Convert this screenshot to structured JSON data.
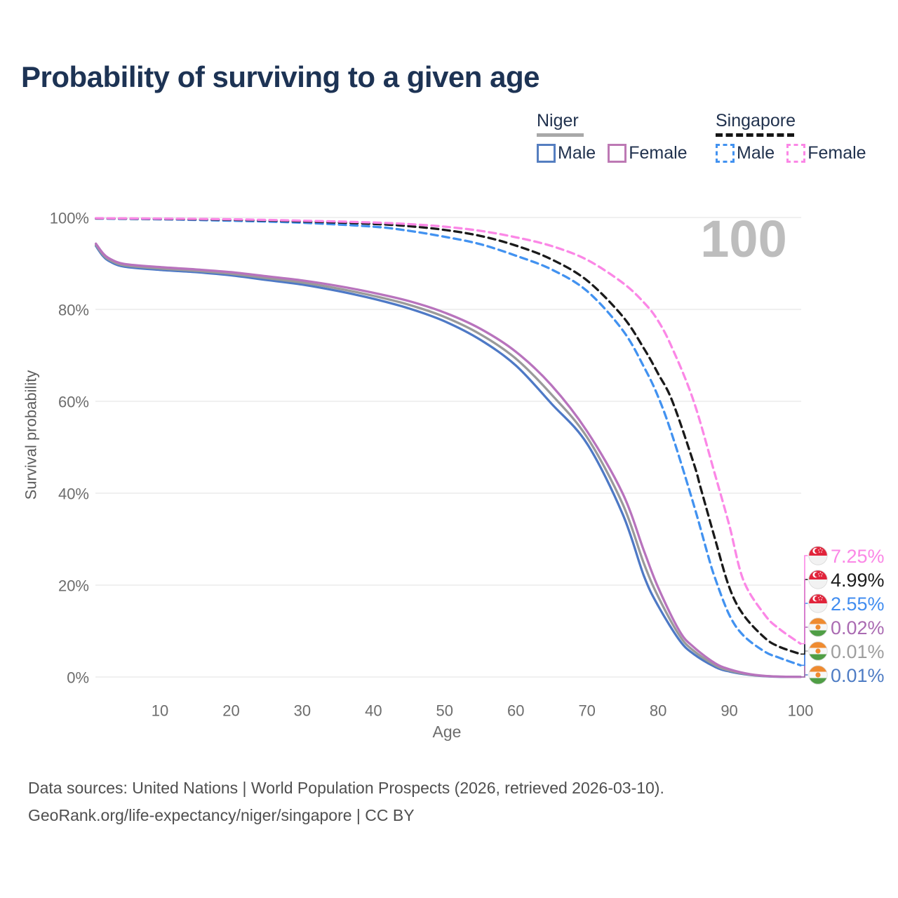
{
  "title": "Probability of surviving to a given age",
  "watermark": "100",
  "legend": {
    "groups": [
      {
        "id": "niger",
        "label": "Niger",
        "line_style": "solid",
        "line_color": "#a8a8a8",
        "items": [
          {
            "label": "Male",
            "color": "#557ec0",
            "dashed": false
          },
          {
            "label": "Female",
            "color": "#bd79b4",
            "dashed": false
          }
        ]
      },
      {
        "id": "singapore",
        "label": "Singapore",
        "line_style": "dashed",
        "line_color": "#151515",
        "items": [
          {
            "label": "Male",
            "color": "#4292f0",
            "dashed": true
          },
          {
            "label": "Female",
            "color": "#fb87e6",
            "dashed": true
          }
        ]
      }
    ]
  },
  "chart_data": {
    "type": "line",
    "title": "Probability of surviving to a given age",
    "xlabel": "Age",
    "ylabel": "Survival probability",
    "x_ticks": [
      10,
      20,
      30,
      40,
      50,
      60,
      70,
      80,
      90,
      100
    ],
    "y_ticks": [
      0,
      20,
      40,
      60,
      80,
      100
    ],
    "y_tick_suffix": "%",
    "x_range": [
      0,
      100
    ],
    "y_range": [
      0,
      100
    ],
    "grid": "horizontal",
    "legend_position": "top-right",
    "series": [
      {
        "id": "niger-male",
        "country": "Niger",
        "sex": "Male",
        "color": "#4e79c6",
        "dashed": false,
        "flag": "niger",
        "end_label": "0.01%",
        "label_color": "#4e7cc4",
        "row": 5,
        "points": [
          [
            1,
            93.8
          ],
          [
            2,
            91.6
          ],
          [
            3,
            90.4
          ],
          [
            5,
            89.3
          ],
          [
            10,
            88.6
          ],
          [
            15,
            88.1
          ],
          [
            20,
            87.4
          ],
          [
            25,
            86.4
          ],
          [
            30,
            85.4
          ],
          [
            35,
            84.0
          ],
          [
            40,
            82.3
          ],
          [
            45,
            80.2
          ],
          [
            50,
            77.4
          ],
          [
            55,
            73.4
          ],
          [
            60,
            67.8
          ],
          [
            65,
            59.5
          ],
          [
            70,
            50.8
          ],
          [
            75,
            35.5
          ],
          [
            78,
            22.0
          ],
          [
            80,
            15.5
          ],
          [
            83,
            8.0
          ],
          [
            85,
            5.0
          ],
          [
            88,
            2.2
          ],
          [
            90,
            1.2
          ],
          [
            93,
            0.45
          ],
          [
            96,
            0.1
          ],
          [
            100,
            0.01
          ]
        ]
      },
      {
        "id": "niger-both",
        "country": "Niger",
        "sex": "Both sexes",
        "color": "#9a9a9a",
        "dashed": false,
        "flag": "niger",
        "end_label": "0.01%",
        "label_color": "#9e9e9e",
        "row": 4,
        "points": [
          [
            1,
            94.05
          ],
          [
            2,
            91.9
          ],
          [
            3,
            90.7
          ],
          [
            5,
            89.6
          ],
          [
            10,
            88.9
          ],
          [
            15,
            88.4
          ],
          [
            20,
            87.75
          ],
          [
            25,
            86.8
          ],
          [
            30,
            85.85
          ],
          [
            35,
            84.55
          ],
          [
            40,
            82.95
          ],
          [
            45,
            81.0
          ],
          [
            50,
            78.35
          ],
          [
            55,
            74.6
          ],
          [
            60,
            69.3
          ],
          [
            65,
            61.5
          ],
          [
            70,
            52.2
          ],
          [
            75,
            37.7
          ],
          [
            78,
            24.7
          ],
          [
            80,
            17.5
          ],
          [
            83,
            9.0
          ],
          [
            85,
            5.7
          ],
          [
            88,
            2.6
          ],
          [
            90,
            1.4
          ],
          [
            93,
            0.5
          ],
          [
            96,
            0.13
          ],
          [
            100,
            0.01
          ]
        ]
      },
      {
        "id": "niger-female",
        "country": "Niger",
        "sex": "Female",
        "color": "#b873bd",
        "dashed": false,
        "flag": "niger",
        "end_label": "0.02%",
        "label_color": "#aa6bb2",
        "row": 3,
        "points": [
          [
            1,
            94.3
          ],
          [
            2,
            92.2
          ],
          [
            3,
            91.0
          ],
          [
            5,
            89.9
          ],
          [
            10,
            89.2
          ],
          [
            15,
            88.7
          ],
          [
            20,
            88.1
          ],
          [
            25,
            87.2
          ],
          [
            30,
            86.3
          ],
          [
            35,
            85.1
          ],
          [
            40,
            83.6
          ],
          [
            45,
            81.8
          ],
          [
            50,
            79.3
          ],
          [
            55,
            75.8
          ],
          [
            60,
            70.8
          ],
          [
            65,
            63.5
          ],
          [
            70,
            53.5
          ],
          [
            75,
            40.0
          ],
          [
            78,
            27.5
          ],
          [
            80,
            19.5
          ],
          [
            83,
            10.0
          ],
          [
            85,
            6.5
          ],
          [
            88,
            3.0
          ],
          [
            90,
            1.7
          ],
          [
            93,
            0.6
          ],
          [
            96,
            0.15
          ],
          [
            100,
            0.02
          ]
        ]
      },
      {
        "id": "singapore-male",
        "country": "Singapore",
        "sex": "Male",
        "color": "#4292f0",
        "dashed": true,
        "flag": "singapore",
        "end_label": "2.55%",
        "label_color": "#418df0",
        "row": 2,
        "points": [
          [
            1,
            99.75
          ],
          [
            10,
            99.6
          ],
          [
            20,
            99.3
          ],
          [
            30,
            98.85
          ],
          [
            40,
            98.0
          ],
          [
            45,
            97.1
          ],
          [
            50,
            95.8
          ],
          [
            55,
            94.2
          ],
          [
            60,
            91.7
          ],
          [
            65,
            88.7
          ],
          [
            70,
            84.0
          ],
          [
            75,
            75.5
          ],
          [
            78,
            67.5
          ],
          [
            80,
            61.0
          ],
          [
            82,
            52.5
          ],
          [
            85,
            37.5
          ],
          [
            87,
            26.5
          ],
          [
            88,
            21.5
          ],
          [
            90,
            13.5
          ],
          [
            92,
            9.0
          ],
          [
            95,
            5.5
          ],
          [
            97,
            4.2
          ],
          [
            100,
            2.55
          ]
        ]
      },
      {
        "id": "singapore-both",
        "country": "Singapore",
        "sex": "Both sexes",
        "color": "#1a1a1a",
        "dashed": true,
        "flag": "singapore",
        "end_label": "4.99%",
        "label_color": "#1c1c1c",
        "row": 1,
        "points": [
          [
            1,
            99.8
          ],
          [
            10,
            99.7
          ],
          [
            20,
            99.5
          ],
          [
            30,
            99.15
          ],
          [
            40,
            98.6
          ],
          [
            45,
            98.1
          ],
          [
            50,
            97.3
          ],
          [
            55,
            96.0
          ],
          [
            60,
            93.9
          ],
          [
            65,
            90.9
          ],
          [
            70,
            86.3
          ],
          [
            75,
            78.5
          ],
          [
            78,
            71.5
          ],
          [
            80,
            66.0
          ],
          [
            82,
            60.0
          ],
          [
            85,
            46.5
          ],
          [
            86,
            41.0
          ],
          [
            88,
            30.0
          ],
          [
            90,
            19.5
          ],
          [
            92,
            13.5
          ],
          [
            95,
            8.5
          ],
          [
            97,
            6.6
          ],
          [
            100,
            4.99
          ]
        ]
      },
      {
        "id": "singapore-female",
        "country": "Singapore",
        "sex": "Female",
        "color": "#fb87e6",
        "dashed": true,
        "flag": "singapore",
        "end_label": "7.25%",
        "label_color": "#fb87e6",
        "row": 0,
        "points": [
          [
            1,
            99.85
          ],
          [
            10,
            99.75
          ],
          [
            20,
            99.6
          ],
          [
            30,
            99.3
          ],
          [
            40,
            98.9
          ],
          [
            45,
            98.55
          ],
          [
            50,
            98.0
          ],
          [
            55,
            97.1
          ],
          [
            60,
            95.7
          ],
          [
            65,
            93.8
          ],
          [
            70,
            90.8
          ],
          [
            75,
            85.8
          ],
          [
            78,
            81.5
          ],
          [
            80,
            77.5
          ],
          [
            82,
            71.5
          ],
          [
            85,
            60.0
          ],
          [
            88,
            44.0
          ],
          [
            90,
            33.0
          ],
          [
            92,
            21.0
          ],
          [
            95,
            13.5
          ],
          [
            97,
            10.5
          ],
          [
            100,
            7.25
          ]
        ]
      }
    ]
  },
  "footer": {
    "line1": "Data sources: United Nations | World Population Prospects (2026, retrieved 2026-03-10).",
    "line2": "GeoRank.org/life-expectancy/niger/singapore | CC BY"
  }
}
